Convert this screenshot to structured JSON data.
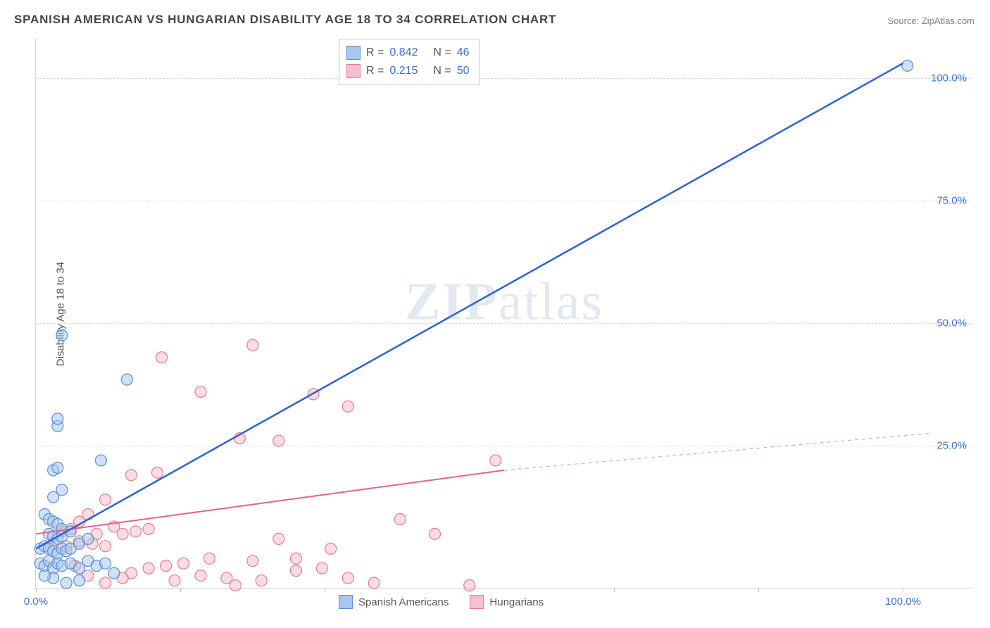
{
  "title": "SPANISH AMERICAN VS HUNGARIAN DISABILITY AGE 18 TO 34 CORRELATION CHART",
  "source": "Source: ZipAtlas.com",
  "ylabel": "Disability Age 18 to 34",
  "watermark": {
    "bold": "ZIP",
    "rest": "atlas"
  },
  "chart": {
    "type": "scatter",
    "xlim": [
      0,
      108
    ],
    "ylim": [
      -4,
      108
    ],
    "y_gridlines": [
      25,
      50,
      75,
      100
    ],
    "y_tick_labels": [
      "25.0%",
      "50.0%",
      "75.0%",
      "100.0%"
    ],
    "x_ticks": [
      0,
      16.67,
      33.33,
      50,
      66.67,
      83.33,
      100
    ],
    "x_tick_labels": {
      "0": "0.0%",
      "100": "100.0%"
    },
    "background_color": "#ffffff",
    "grid_color": "#d8d8d8",
    "axis_color": "#d6d6d6",
    "tick_label_color": "#3a6fd8",
    "marker_radius": 8,
    "marker_opacity": 0.55,
    "series": [
      {
        "name": "Spanish Americans",
        "color_fill": "#a9c6ee",
        "color_stroke": "#5a8fd6",
        "r_value": "0.842",
        "n_value": "46",
        "trend": {
          "x1": 0,
          "y1": 4,
          "x2": 100,
          "y2": 103,
          "color": "#2b62d9",
          "width": 2.5,
          "dash": "none"
        },
        "points": [
          [
            100.5,
            102.5
          ],
          [
            3,
            47.5
          ],
          [
            2.5,
            29
          ],
          [
            2.5,
            30.5
          ],
          [
            10.5,
            38.5
          ],
          [
            2,
            20
          ],
          [
            2.5,
            20.5
          ],
          [
            7.5,
            22
          ],
          [
            3,
            16
          ],
          [
            2,
            14.5
          ],
          [
            1,
            11
          ],
          [
            1.5,
            10
          ],
          [
            2,
            9.5
          ],
          [
            2.5,
            9
          ],
          [
            3,
            8
          ],
          [
            1.5,
            7
          ],
          [
            2,
            6.5
          ],
          [
            2.5,
            6
          ],
          [
            3,
            6.5
          ],
          [
            4,
            7.5
          ],
          [
            0.5,
            4
          ],
          [
            1,
            4.5
          ],
          [
            1.5,
            4
          ],
          [
            2,
            3.5
          ],
          [
            2.5,
            3
          ],
          [
            3,
            4
          ],
          [
            3.5,
            3.5
          ],
          [
            4,
            4
          ],
          [
            5,
            5
          ],
          [
            6,
            6
          ],
          [
            0.5,
            1
          ],
          [
            1,
            0.5
          ],
          [
            1.5,
            1.5
          ],
          [
            2,
            0
          ],
          [
            2.5,
            1
          ],
          [
            3,
            0.5
          ],
          [
            4,
            1
          ],
          [
            5,
            0
          ],
          [
            6,
            1.5
          ],
          [
            7,
            0.5
          ],
          [
            8,
            1
          ],
          [
            9,
            -1
          ],
          [
            5,
            -2.5
          ],
          [
            3.5,
            -3
          ],
          [
            2,
            -2
          ],
          [
            1,
            -1.5
          ]
        ]
      },
      {
        "name": "Hungarians",
        "color_fill": "#f5c0cc",
        "color_stroke": "#e77b95",
        "r_value": "0.215",
        "n_value": "50",
        "trend": {
          "x1": 0,
          "y1": 7,
          "x2": 54,
          "y2": 20,
          "color": "#e86088",
          "width": 2,
          "dash": "none"
        },
        "trend_ext": {
          "x1": 54,
          "y1": 20,
          "x2": 103,
          "y2": 27.5,
          "color": "#f1a6ba",
          "width": 1.3,
          "dash": "5,5"
        },
        "points": [
          [
            14.5,
            43
          ],
          [
            25,
            45.5
          ],
          [
            19,
            36
          ],
          [
            32,
            35.5
          ],
          [
            28,
            26
          ],
          [
            23.5,
            26.5
          ],
          [
            53,
            22
          ],
          [
            36,
            33
          ],
          [
            14,
            19.5
          ],
          [
            11,
            19
          ],
          [
            8,
            14
          ],
          [
            6,
            11
          ],
          [
            5,
            9.5
          ],
          [
            4,
            8
          ],
          [
            3,
            7.5
          ],
          [
            7,
            7
          ],
          [
            9,
            8.5
          ],
          [
            10,
            7
          ],
          [
            11.5,
            7.5
          ],
          [
            13,
            8
          ],
          [
            2,
            5
          ],
          [
            3.5,
            4.5
          ],
          [
            5,
            5.5
          ],
          [
            6.5,
            5
          ],
          [
            8,
            4.5
          ],
          [
            42,
            10
          ],
          [
            46,
            7
          ],
          [
            28,
            6
          ],
          [
            34,
            4
          ],
          [
            30,
            2
          ],
          [
            25,
            1.5
          ],
          [
            20,
            2
          ],
          [
            17,
            1
          ],
          [
            15,
            0.5
          ],
          [
            13,
            0
          ],
          [
            11,
            -1
          ],
          [
            22,
            -2
          ],
          [
            19,
            -1.5
          ],
          [
            26,
            -2.5
          ],
          [
            33,
            0
          ],
          [
            36,
            -2
          ],
          [
            39,
            -3
          ],
          [
            30,
            -0.5
          ],
          [
            23,
            -3.5
          ],
          [
            16,
            -2.5
          ],
          [
            10,
            -2
          ],
          [
            8,
            -3
          ],
          [
            6,
            -1.5
          ],
          [
            4.5,
            0.5
          ],
          [
            50,
            -3.5
          ]
        ]
      }
    ]
  },
  "stats_box": {
    "rows": [
      {
        "swatch_fill": "#a9c6ee",
        "swatch_stroke": "#5a8fd6",
        "r_label": "R =",
        "r_value": "0.842",
        "n_label": "N =",
        "n_value": "46"
      },
      {
        "swatch_fill": "#f5c0cc",
        "swatch_stroke": "#e77b95",
        "r_label": "R =",
        "r_value": "0.215",
        "n_label": "N =",
        "n_value": "50"
      }
    ],
    "value_color": "#3a6fd8"
  },
  "legend": [
    {
      "swatch_fill": "#a9c6ee",
      "swatch_stroke": "#5a8fd6",
      "label": "Spanish Americans"
    },
    {
      "swatch_fill": "#f5c0cc",
      "swatch_stroke": "#e77b95",
      "label": "Hungarians"
    }
  ]
}
